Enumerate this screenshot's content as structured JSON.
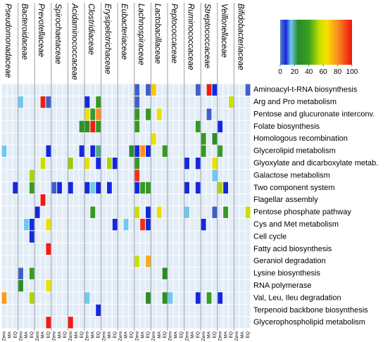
{
  "chart_data": {
    "type": "heatmap",
    "families": [
      "Pseudomonadaceae",
      "Bacteroidaceae",
      "Prevotellaceae",
      "Spirochaetaceae",
      "Acidaminococcaceae",
      "Clostridiaceae",
      "Erysipelotrichaceae",
      "Eubacteriaceae",
      "Lachnospiraceae",
      "Lactobacillaceae",
      "Peptococcaceae",
      "Ruminococcaceae",
      "Streptococcaceae",
      "Veillonellaceae",
      "Bifidobacteriaceae"
    ],
    "subcolumns": [
      "Zero",
      "MA",
      "EQ"
    ],
    "rows": [
      "Aminoacyl-t-RNA biosynthesis",
      "Arg and Pro metabolism",
      "Pentose and glucuronate interconv.",
      "Folate biosynthesis",
      "Homologous recombination",
      "Glycerolipid metabolism",
      "Glyoxylate and dicarboxylate metab.",
      "Galactose metabolism",
      "Two component system",
      "Flagellar assembly",
      "Pentose phosphate pathway",
      "Cys and Met metabolism",
      "Cell cycle",
      "Fatty acid biosynthesis",
      "Geraniol degradation",
      "Lysine biosynthesis",
      "RNA polymerase",
      "Val, Leu, Ileu degradation",
      "Terpenoid backbone biosynthesis",
      "Glycerophospholipid metabolism"
    ],
    "values": [
      [
        null,
        null,
        null,
        null,
        null,
        null,
        null,
        null,
        null,
        null,
        null,
        null,
        null,
        null,
        null,
        null,
        null,
        null,
        null,
        null,
        null,
        null,
        null,
        null,
        3,
        null,
        3,
        70,
        null,
        null,
        null,
        null,
        null,
        null,
        null,
        3,
        null,
        98,
        8,
        null,
        null,
        null,
        null,
        null,
        3
      ],
      [
        null,
        null,
        null,
        15,
        null,
        null,
        null,
        98,
        3,
        null,
        null,
        null,
        null,
        null,
        null,
        8,
        null,
        35,
        null,
        null,
        null,
        null,
        null,
        null,
        3,
        null,
        null,
        null,
        null,
        null,
        null,
        null,
        null,
        null,
        null,
        null,
        null,
        null,
        null,
        null,
        null,
        55,
        null,
        null,
        null
      ],
      [
        null,
        null,
        null,
        null,
        null,
        null,
        null,
        null,
        null,
        null,
        null,
        null,
        null,
        null,
        null,
        62,
        35,
        80,
        null,
        null,
        null,
        null,
        null,
        null,
        35,
        null,
        35,
        null,
        62,
        null,
        null,
        null,
        null,
        null,
        null,
        null,
        null,
        3,
        null,
        null,
        null,
        null,
        null,
        null,
        null
      ],
      [
        null,
        null,
        null,
        null,
        null,
        null,
        null,
        null,
        null,
        null,
        null,
        null,
        null,
        null,
        30,
        28,
        98,
        35,
        null,
        null,
        null,
        null,
        null,
        null,
        35,
        null,
        null,
        null,
        null,
        null,
        null,
        null,
        null,
        null,
        null,
        35,
        null,
        null,
        null,
        8,
        null,
        null,
        null,
        null,
        null
      ],
      [
        null,
        null,
        null,
        null,
        null,
        null,
        null,
        null,
        null,
        null,
        null,
        null,
        null,
        null,
        null,
        null,
        null,
        null,
        null,
        null,
        null,
        null,
        null,
        null,
        null,
        null,
        null,
        62,
        null,
        null,
        null,
        null,
        null,
        null,
        null,
        null,
        35,
        null,
        28,
        null,
        null,
        null,
        null,
        null,
        null
      ],
      [
        15,
        null,
        null,
        null,
        null,
        null,
        null,
        null,
        8,
        null,
        null,
        null,
        null,
        null,
        8,
        null,
        8,
        20,
        null,
        null,
        null,
        null,
        null,
        28,
        8,
        80,
        8,
        null,
        null,
        35,
        null,
        null,
        null,
        null,
        null,
        null,
        35,
        null,
        null,
        35,
        null,
        null,
        null,
        null,
        null
      ],
      [
        null,
        null,
        null,
        null,
        null,
        null,
        null,
        55,
        null,
        null,
        null,
        null,
        50,
        null,
        null,
        62,
        null,
        8,
        null,
        52,
        8,
        null,
        null,
        null,
        35,
        null,
        null,
        null,
        null,
        null,
        null,
        null,
        null,
        8,
        null,
        8,
        null,
        null,
        62,
        null,
        null,
        null,
        null,
        null,
        null
      ],
      [
        null,
        null,
        null,
        null,
        null,
        52,
        null,
        null,
        null,
        null,
        null,
        null,
        null,
        null,
        null,
        null,
        null,
        null,
        null,
        null,
        null,
        null,
        null,
        null,
        95,
        null,
        null,
        null,
        null,
        null,
        null,
        null,
        null,
        null,
        null,
        null,
        null,
        null,
        15,
        null,
        null,
        null,
        null,
        null,
        null
      ],
      [
        null,
        null,
        8,
        null,
        null,
        38,
        null,
        null,
        null,
        3,
        8,
        null,
        8,
        null,
        null,
        8,
        15,
        8,
        null,
        8,
        null,
        null,
        null,
        null,
        8,
        35,
        35,
        null,
        null,
        null,
        null,
        null,
        null,
        8,
        null,
        8,
        null,
        null,
        null,
        52,
        8,
        null,
        null,
        null,
        null
      ],
      [
        null,
        null,
        null,
        null,
        null,
        null,
        null,
        98,
        null,
        null,
        null,
        null,
        null,
        null,
        null,
        null,
        null,
        null,
        null,
        null,
        null,
        null,
        null,
        null,
        null,
        null,
        null,
        null,
        null,
        null,
        null,
        null,
        null,
        null,
        null,
        null,
        null,
        null,
        null,
        null,
        null,
        null,
        null,
        null,
        null
      ],
      [
        null,
        null,
        null,
        null,
        null,
        null,
        8,
        null,
        null,
        null,
        null,
        null,
        null,
        null,
        null,
        null,
        35,
        null,
        null,
        null,
        null,
        null,
        null,
        null,
        55,
        null,
        8,
        null,
        62,
        null,
        null,
        null,
        null,
        15,
        null,
        null,
        null,
        null,
        3,
        null,
        35,
        null,
        null,
        null,
        55
      ],
      [
        null,
        null,
        null,
        null,
        15,
        8,
        null,
        null,
        62,
        null,
        null,
        null,
        null,
        null,
        null,
        null,
        null,
        null,
        null,
        null,
        8,
        null,
        15,
        null,
        null,
        95,
        8,
        null,
        null,
        null,
        null,
        null,
        null,
        null,
        null,
        null,
        8,
        null,
        null,
        null,
        null,
        null,
        null,
        null,
        null
      ],
      [
        null,
        null,
        null,
        null,
        null,
        8,
        null,
        null,
        null,
        null,
        null,
        null,
        null,
        null,
        null,
        null,
        null,
        null,
        null,
        null,
        null,
        null,
        null,
        null,
        null,
        null,
        null,
        null,
        null,
        null,
        null,
        null,
        null,
        null,
        null,
        null,
        null,
        null,
        null,
        null,
        null,
        null,
        null,
        null,
        null
      ],
      [
        null,
        null,
        null,
        null,
        null,
        null,
        null,
        null,
        98,
        null,
        null,
        null,
        null,
        null,
        null,
        null,
        null,
        null,
        null,
        null,
        null,
        null,
        null,
        null,
        null,
        null,
        null,
        null,
        null,
        null,
        null,
        null,
        null,
        null,
        null,
        null,
        null,
        null,
        null,
        null,
        null,
        null,
        null,
        null,
        null
      ],
      [
        null,
        null,
        null,
        null,
        null,
        null,
        null,
        null,
        null,
        null,
        null,
        null,
        null,
        null,
        null,
        null,
        null,
        null,
        null,
        null,
        null,
        null,
        null,
        null,
        55,
        null,
        75,
        null,
        null,
        null,
        null,
        null,
        null,
        null,
        null,
        null,
        null,
        null,
        null,
        null,
        null,
        null,
        null,
        null,
        null
      ],
      [
        null,
        null,
        null,
        3,
        null,
        38,
        null,
        null,
        null,
        null,
        null,
        null,
        null,
        null,
        null,
        null,
        null,
        null,
        null,
        null,
        null,
        null,
        null,
        null,
        null,
        null,
        null,
        null,
        null,
        25,
        null,
        null,
        null,
        null,
        null,
        null,
        null,
        null,
        null,
        null,
        null,
        null,
        null,
        null,
        null
      ],
      [
        null,
        null,
        null,
        28,
        null,
        null,
        null,
        null,
        62,
        null,
        null,
        null,
        null,
        null,
        null,
        null,
        null,
        null,
        null,
        null,
        null,
        null,
        null,
        null,
        null,
        null,
        null,
        null,
        null,
        null,
        null,
        null,
        null,
        null,
        null,
        null,
        null,
        null,
        null,
        null,
        null,
        null,
        null,
        null,
        null
      ],
      [
        78,
        null,
        null,
        null,
        null,
        52,
        null,
        null,
        null,
        null,
        null,
        null,
        null,
        null,
        null,
        15,
        null,
        null,
        null,
        null,
        null,
        null,
        null,
        null,
        null,
        null,
        28,
        null,
        null,
        28,
        15,
        null,
        null,
        null,
        null,
        8,
        null,
        38,
        null,
        8,
        null,
        null,
        null,
        null,
        null
      ],
      [
        null,
        null,
        null,
        null,
        null,
        null,
        null,
        null,
        null,
        null,
        null,
        null,
        null,
        null,
        null,
        null,
        null,
        8,
        null,
        null,
        null,
        null,
        null,
        null,
        null,
        null,
        null,
        null,
        null,
        null,
        null,
        null,
        null,
        null,
        null,
        null,
        null,
        null,
        null,
        null,
        null,
        null,
        null,
        null,
        null
      ],
      [
        null,
        null,
        null,
        null,
        null,
        null,
        null,
        null,
        98,
        null,
        null,
        null,
        98,
        null,
        null,
        null,
        null,
        null,
        null,
        null,
        null,
        null,
        null,
        null,
        null,
        null,
        null,
        null,
        null,
        null,
        null,
        null,
        null,
        null,
        null,
        null,
        null,
        null,
        null,
        null,
        null,
        null,
        null,
        null,
        null
      ]
    ],
    "colorscale": [
      [
        0,
        "#5a7fc0"
      ],
      [
        8,
        "#1428e0"
      ],
      [
        15,
        "#70c8f0"
      ],
      [
        25,
        "#2a8a2a"
      ],
      [
        40,
        "#3aa020"
      ],
      [
        55,
        "#c8e000"
      ],
      [
        65,
        "#f8e000"
      ],
      [
        80,
        "#f89020"
      ],
      [
        100,
        "#f01010"
      ]
    ],
    "colorbar": {
      "min": 0,
      "max": 100,
      "ticks": [
        0,
        20,
        40,
        60,
        80,
        100
      ]
    },
    "empty_color": "#e3edf7"
  }
}
